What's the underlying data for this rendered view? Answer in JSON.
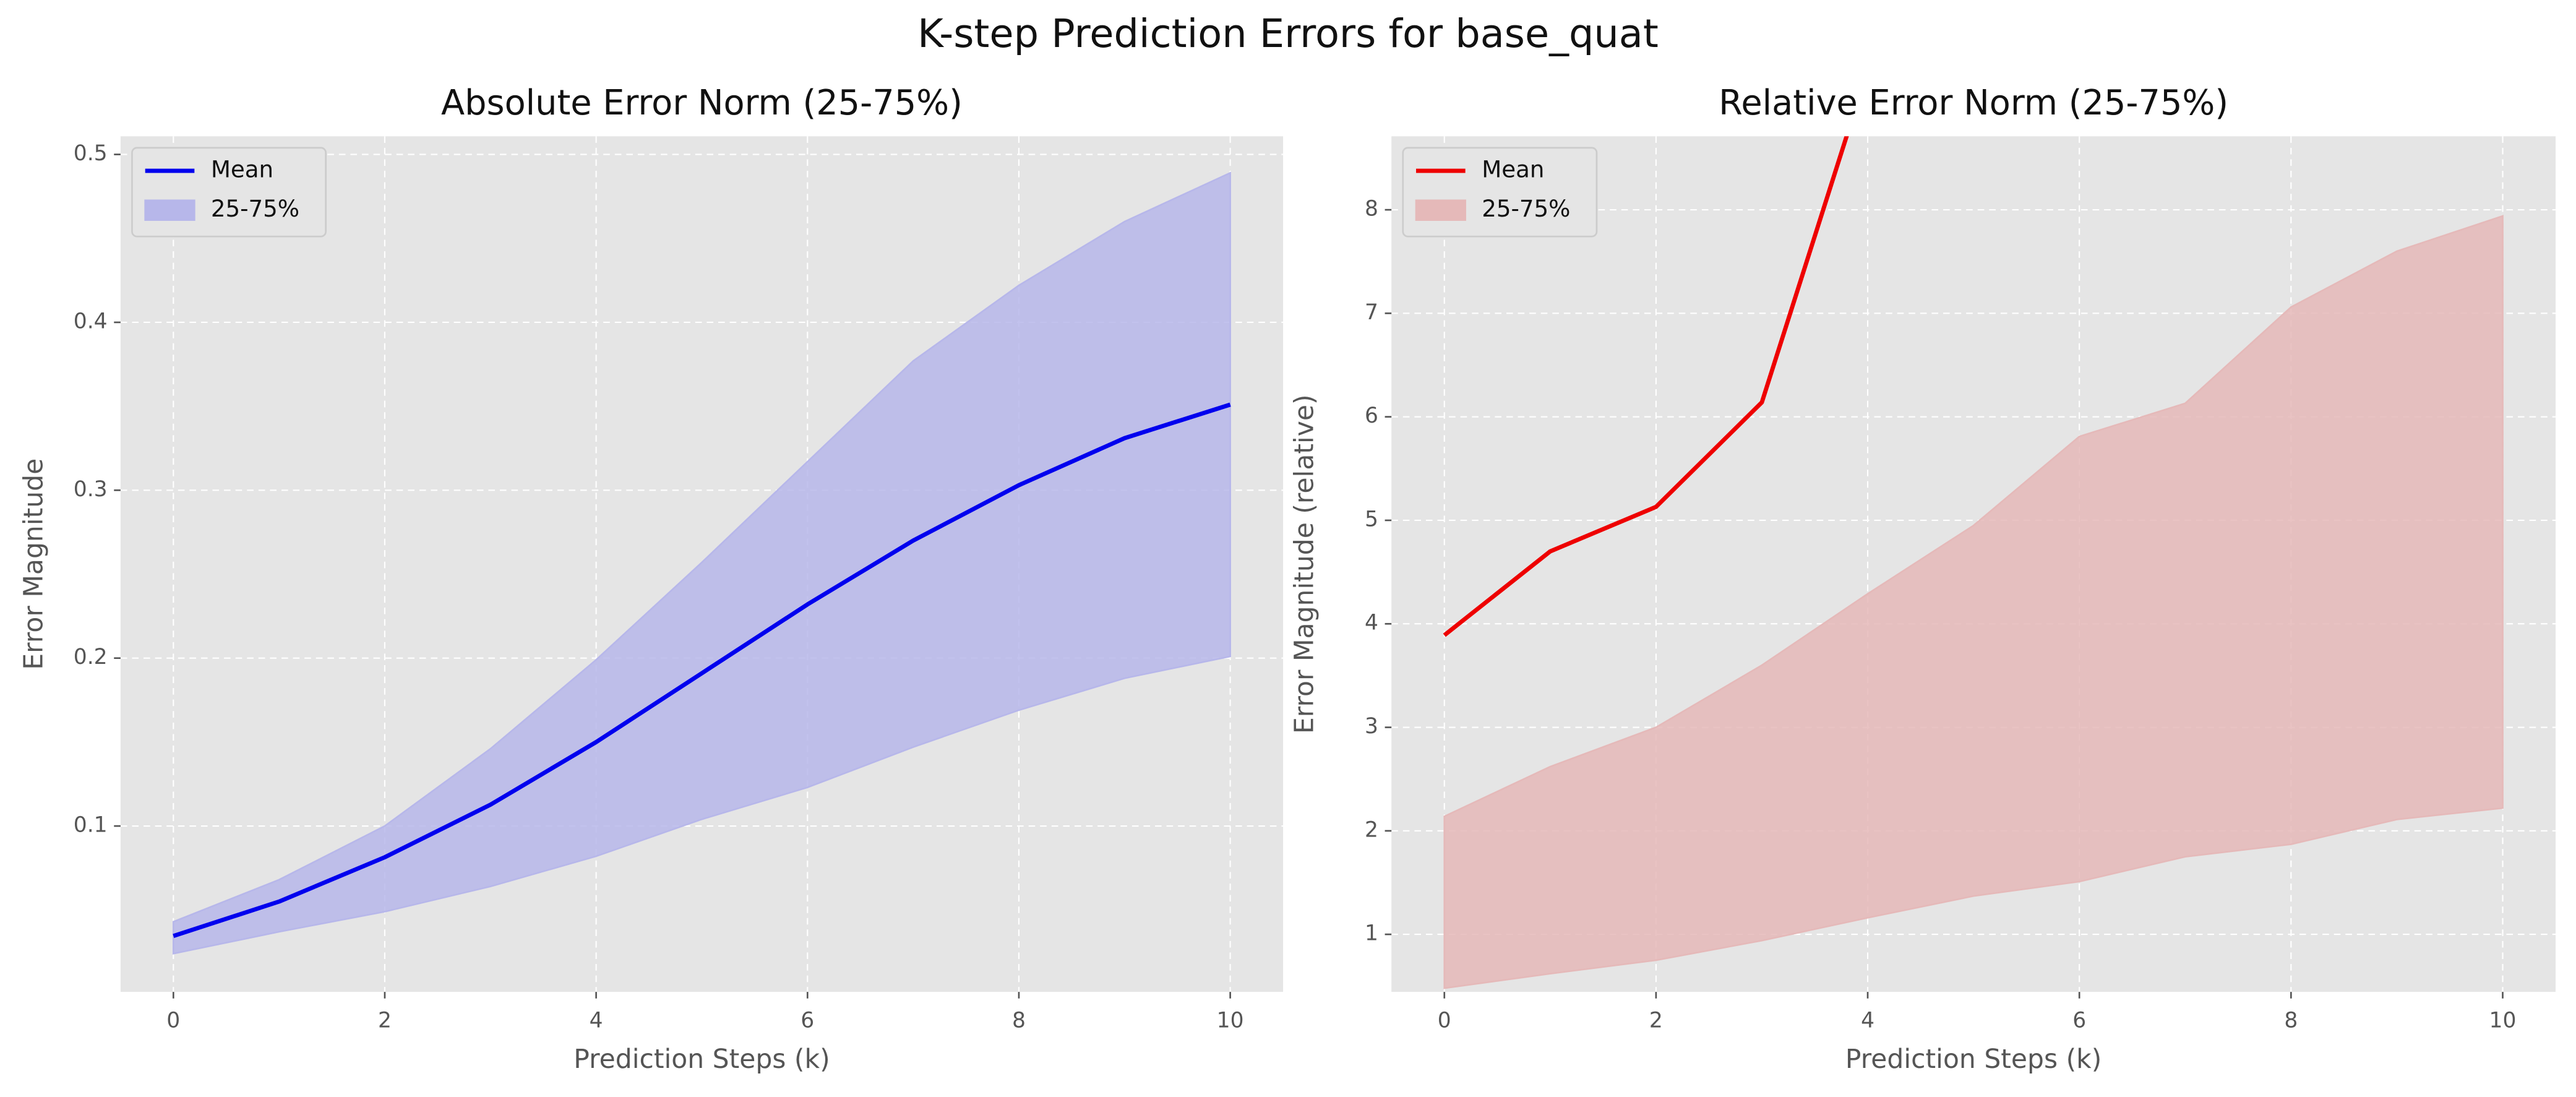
{
  "suptitle": "K-step Prediction Errors for base_quat",
  "chart_data": [
    {
      "type": "line",
      "title": "Absolute Error Norm (25-75%)",
      "xlabel": "Prediction Steps (k)",
      "ylabel": "Error Magnitude",
      "x": [
        0,
        1,
        2,
        3,
        4,
        5,
        6,
        7,
        8,
        9,
        10
      ],
      "series": [
        {
          "name": "Mean",
          "type": "line",
          "color": "#0000ee",
          "values": [
            0.0345,
            0.055,
            0.0814,
            0.1127,
            0.15,
            0.191,
            0.232,
            0.27,
            0.303,
            0.331,
            0.351
          ]
        },
        {
          "name": "25-75%",
          "type": "band",
          "color": "#b7b7ea",
          "upper": [
            0.043,
            0.068,
            0.1,
            0.146,
            0.199,
            0.257,
            0.317,
            0.377,
            0.422,
            0.46,
            0.489
          ],
          "lower": [
            0.024,
            0.037,
            0.049,
            0.064,
            0.082,
            0.104,
            0.123,
            0.147,
            0.169,
            0.188,
            0.201
          ]
        }
      ],
      "xlim": [
        -0.5,
        10.5
      ],
      "xticks": [
        0,
        2,
        4,
        6,
        8,
        10
      ],
      "ylim": [
        0.0012,
        0.5108
      ],
      "yticks": [
        0.1,
        0.2,
        0.3,
        0.4,
        0.5
      ],
      "grid": true,
      "legend": "upper left"
    },
    {
      "type": "line",
      "title": "Relative Error Norm (25-75%)",
      "xlabel": "Prediction Steps (k)",
      "ylabel": "Error Magnitude (relative)",
      "x": [
        0,
        1,
        2,
        3,
        4,
        5,
        6,
        7,
        8,
        9,
        10
      ],
      "series": [
        {
          "name": "Mean",
          "type": "line",
          "color": "#ee0000",
          "values": [
            3.89,
            4.7,
            5.13,
            6.14,
            9.35,
            null,
            null,
            null,
            null,
            null,
            null
          ]
        },
        {
          "name": "25-75%",
          "type": "band",
          "color": "#e5b9b9",
          "upper": [
            2.14,
            2.62,
            3.0,
            3.6,
            4.29,
            4.95,
            5.81,
            6.13,
            7.06,
            7.6,
            7.94
          ],
          "lower": [
            0.48,
            0.62,
            0.75,
            0.94,
            1.16,
            1.37,
            1.51,
            1.75,
            1.87,
            2.11,
            2.22
          ]
        }
      ],
      "xlim": [
        -0.5,
        10.5
      ],
      "xticks": [
        0,
        2,
        4,
        6,
        8,
        10
      ],
      "ylim": [
        0.444,
        8.71
      ],
      "yticks": [
        1,
        2,
        3,
        4,
        5,
        6,
        7,
        8
      ],
      "grid": true,
      "legend": "upper left"
    }
  ]
}
